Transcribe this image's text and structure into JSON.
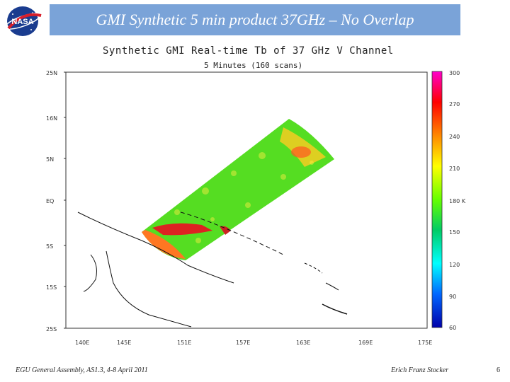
{
  "slide": {
    "title": "GMI Synthetic 5 min product 37GHz – No Overlap",
    "logo_text": "NASA"
  },
  "figure": {
    "title": "Synthetic GMI Real-time Tb of 37 GHz V Channel",
    "subtitle": "5 Minutes (160 scans)"
  },
  "chart_data": {
    "type": "heatmap",
    "title": "Synthetic GMI Real-time Tb of 37 GHz V Channel",
    "subtitle": "5 Minutes (160 scans)",
    "x_ticks": [
      "140E",
      "145E",
      "151E",
      "157E",
      "163E",
      "169E",
      "175E"
    ],
    "y_ticks": [
      "25N",
      "16N",
      "5N",
      "EQ",
      "5S",
      "15S",
      "25S"
    ],
    "colorbar": {
      "ticks": [
        "300",
        "270",
        "240",
        "210",
        "180 K",
        "150",
        "120",
        "90",
        "60"
      ],
      "range": [
        60,
        300
      ],
      "colors": [
        "#ff00cc",
        "#ff0000",
        "#ff8800",
        "#ffff00",
        "#66ff00",
        "#00cc66",
        "#00ffff",
        "#0066ff",
        "#0000aa"
      ]
    }
  },
  "footer": {
    "left": "EGU General Assembly, AS1.3, 4-8 April 2011",
    "center": "Erich Franz Stocker",
    "page": "6"
  }
}
